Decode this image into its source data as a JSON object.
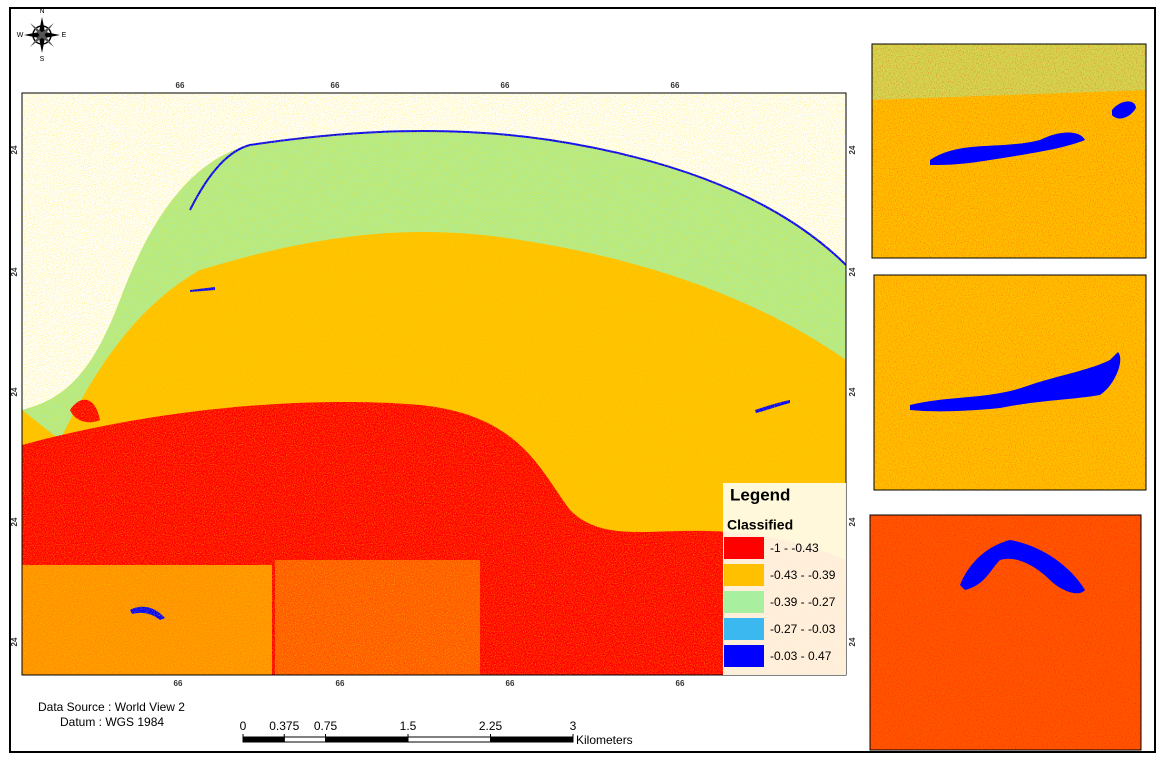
{
  "compass": {
    "north": "N",
    "east": "E",
    "south": "S",
    "west": "W"
  },
  "map": {
    "top_labels": [
      "66",
      "66",
      "66",
      "66"
    ],
    "bottom_labels": [
      "66",
      "66",
      "66",
      "66"
    ],
    "left_labels": [
      "24",
      "24",
      "24",
      "24",
      "24"
    ],
    "right_labels": [
      "24",
      "24",
      "24",
      "24",
      "24"
    ]
  },
  "legend": {
    "title": "Legend",
    "subtitle": "Classified",
    "classes": [
      {
        "label": "-1 - -0.43",
        "color": "#ff0000"
      },
      {
        "label": "-0.43 - -0.39",
        "color": "#ffc000"
      },
      {
        "label": "-0.39 - -0.27",
        "color": "#a8f0a0"
      },
      {
        "label": "-0.27 - -0.03",
        "color": "#3cb8f0"
      },
      {
        "label": "-0.03 - 0.47",
        "color": "#0000ff"
      }
    ]
  },
  "source": {
    "data_source": "Data Source : World View 2",
    "datum": "Datum : WGS 1984"
  },
  "scale_bar": {
    "ticks": [
      0,
      0.375,
      0.75,
      1.5,
      2.25,
      3
    ],
    "unit": "Kilometers"
  }
}
